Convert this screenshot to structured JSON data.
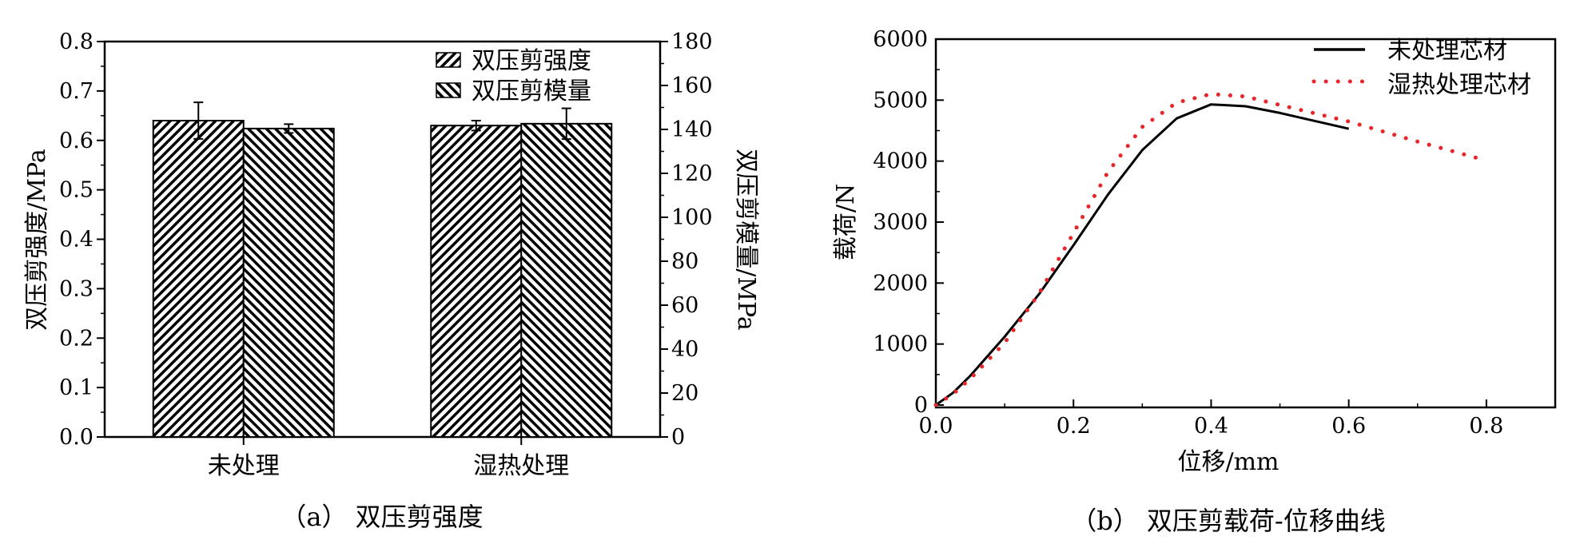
{
  "chart_data": [
    {
      "type": "bar",
      "categories": [
        "未处理",
        "湿热处理"
      ],
      "series": [
        {
          "name": "双压剪强度",
          "axis": "left",
          "values": [
            0.64,
            0.63
          ],
          "errors": [
            0.037,
            0.01
          ]
        },
        {
          "name": "双压剪模量",
          "axis": "right",
          "values": [
            140.4,
            142.6
          ],
          "errors": [
            2.0,
            7.0
          ]
        }
      ],
      "ylabel": "双压剪强度/MPa",
      "y2label": "双压剪模量/MPa",
      "ylim": [
        0,
        0.8
      ],
      "y2lim": [
        0,
        180
      ],
      "yticks": [
        "0.0",
        "0.1",
        "0.2",
        "0.3",
        "0.4",
        "0.5",
        "0.6",
        "0.7",
        "0.8"
      ],
      "y2ticks": [
        "0",
        "20",
        "40",
        "60",
        "80",
        "100",
        "120",
        "140",
        "160",
        "180"
      ],
      "legend_position": "top-right",
      "grid": false,
      "caption": "（a） 双压剪强度"
    },
    {
      "type": "line",
      "xlabel": "位移/mm",
      "ylabel": "载荷/N",
      "xlim": [
        0,
        0.9
      ],
      "ylim": [
        0,
        6000
      ],
      "xticks": [
        "0.0",
        "0.2",
        "0.4",
        "0.6",
        "0.8"
      ],
      "yticks": [
        "0",
        "1000",
        "2000",
        "3000",
        "4000",
        "5000",
        "6000"
      ],
      "legend_position": "top-right",
      "grid": false,
      "series": [
        {
          "name": "未处理芯材",
          "style": "solid",
          "color": "#000000",
          "points": [
            [
              0,
              0
            ],
            [
              0.025,
              200
            ],
            [
              0.05,
              480
            ],
            [
              0.1,
              1120
            ],
            [
              0.15,
              1820
            ],
            [
              0.2,
              2620
            ],
            [
              0.25,
              3450
            ],
            [
              0.3,
              4180
            ],
            [
              0.35,
              4700
            ],
            [
              0.4,
              4930
            ],
            [
              0.45,
              4900
            ],
            [
              0.5,
              4790
            ],
            [
              0.55,
              4660
            ],
            [
              0.6,
              4530
            ]
          ]
        },
        {
          "name": "湿热处理芯材",
          "style": "dotted",
          "color": "#e8262a",
          "points": [
            [
              0,
              0
            ],
            [
              0.025,
              180
            ],
            [
              0.05,
              430
            ],
            [
              0.1,
              1020
            ],
            [
              0.15,
              1830
            ],
            [
              0.2,
              2820
            ],
            [
              0.25,
              3820
            ],
            [
              0.3,
              4560
            ],
            [
              0.35,
              4960
            ],
            [
              0.4,
              5100
            ],
            [
              0.45,
              5060
            ],
            [
              0.5,
              4920
            ],
            [
              0.6,
              4650
            ],
            [
              0.7,
              4320
            ],
            [
              0.79,
              4040
            ]
          ]
        }
      ],
      "caption": "（b） 双压剪载荷-位移曲线"
    }
  ]
}
